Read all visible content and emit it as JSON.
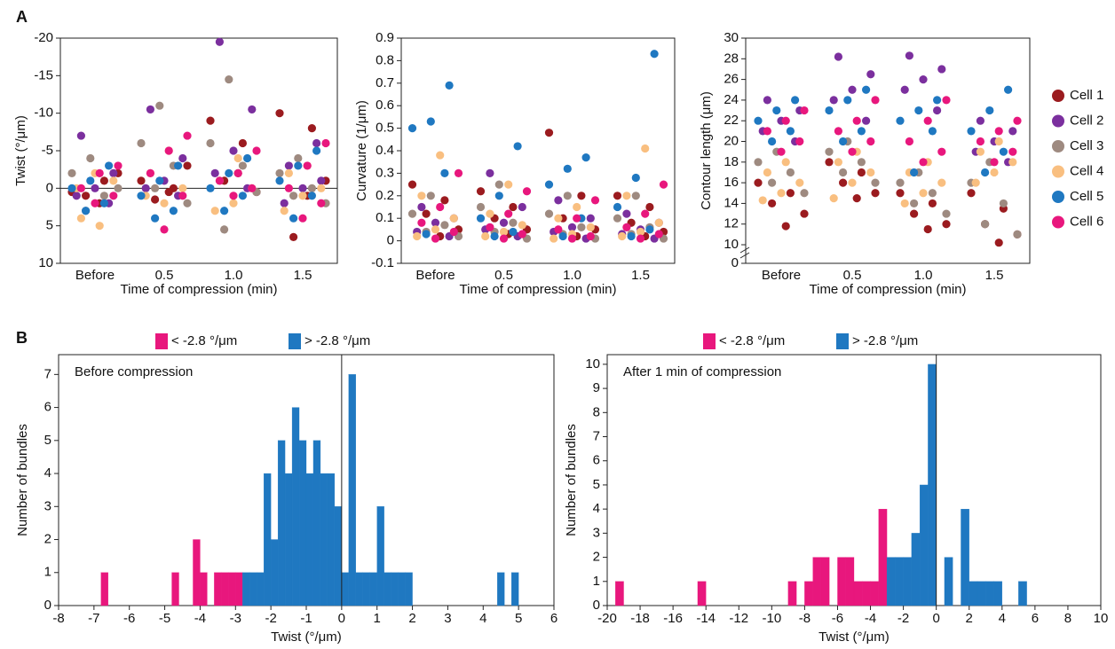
{
  "panel_labels": [
    "A",
    "B"
  ],
  "chart_data": [
    {
      "type": "beeswarm",
      "xlabel": "Time of compression (min)",
      "ylabel": "Twist (°/μm)",
      "categories": [
        "Before",
        "0.5",
        "1.0",
        "1.5"
      ],
      "ylim": [
        10,
        -20
      ],
      "yticks": [
        -20,
        -15,
        -10,
        -5,
        0,
        5,
        10
      ],
      "zero_line": true,
      "series": [
        {
          "color": "#9b1b1f",
          "values": [
            [
              0.5,
              -1,
              1,
              -2,
              2
            ],
            [
              -1,
              0,
              1.5,
              -3,
              0.5
            ],
            [
              -9,
              -6,
              -1,
              0.5,
              -2
            ],
            [
              -10,
              -8,
              6.5,
              -1,
              1
            ]
          ]
        },
        {
          "color": "#7b2f9e",
          "values": [
            [
              -7,
              -2,
              0,
              1,
              2
            ],
            [
              -10.5,
              -4,
              -1,
              0,
              1
            ],
            [
              -19.5,
              -10.5,
              -5,
              -2,
              0
            ],
            [
              -3,
              -1,
              0,
              2,
              -6
            ]
          ]
        },
        {
          "color": "#9e8a80",
          "values": [
            [
              -4,
              -2,
              1,
              3,
              0
            ],
            [
              -11,
              -6,
              -3,
              0,
              2
            ],
            [
              -14.5,
              -6,
              -3,
              5.5,
              0.5
            ],
            [
              -4,
              -2,
              0,
              1,
              2
            ]
          ]
        },
        {
          "color": "#f9bf80",
          "values": [
            [
              5,
              4,
              -1,
              -2,
              0
            ],
            [
              -5,
              -2,
              0,
              2,
              1
            ],
            [
              -4,
              -1,
              0,
              2,
              3
            ],
            [
              -3,
              -2,
              0,
              1,
              3
            ]
          ]
        },
        {
          "color": "#1f78c1",
          "values": [
            [
              -3,
              -1,
              0,
              2,
              3
            ],
            [
              -3,
              -1,
              1,
              3,
              4
            ],
            [
              -4,
              -2,
              0,
              1,
              3
            ],
            [
              -5,
              -3,
              -1,
              1,
              4
            ]
          ]
        },
        {
          "color": "#e8177d",
          "values": [
            [
              -3,
              -2,
              0,
              1,
              2
            ],
            [
              -7,
              -5,
              -2,
              1,
              5.5
            ],
            [
              -5,
              -2,
              -1,
              0,
              1
            ],
            [
              -6,
              -3,
              0,
              2,
              4
            ]
          ]
        }
      ]
    },
    {
      "type": "beeswarm",
      "xlabel": "Time of compression (min)",
      "ylabel": "Curvature (1/μm)",
      "categories": [
        "Before",
        "0.5",
        "1.0",
        "1.5"
      ],
      "ylim": [
        -0.1,
        0.9
      ],
      "yticks": [
        -0.1,
        0,
        0.1,
        0.2,
        0.3,
        0.4,
        0.5,
        0.6,
        0.7,
        0.8,
        0.9
      ],
      "series": [
        {
          "color": "#9b1b1f",
          "values": [
            [
              0.25,
              0.18,
              0.12,
              0.05,
              0.02
            ],
            [
              0.22,
              0.15,
              0.1,
              0.05,
              0.03
            ],
            [
              0.48,
              0.2,
              0.1,
              0.05,
              0.02
            ],
            [
              0.2,
              0.15,
              0.08,
              0.04,
              0.02
            ]
          ]
        },
        {
          "color": "#7b2f9e",
          "values": [
            [
              0.15,
              0.1,
              0.08,
              0.04,
              0.02
            ],
            [
              0.3,
              0.15,
              0.08,
              0.05,
              0.02
            ],
            [
              0.18,
              0.1,
              0.06,
              0.04,
              0.01
            ],
            [
              0.12,
              0.08,
              0.05,
              0.03,
              0.01
            ]
          ]
        },
        {
          "color": "#9e8a80",
          "values": [
            [
              0.2,
              0.12,
              0.07,
              0.04,
              0.02
            ],
            [
              0.25,
              0.15,
              0.08,
              0.04,
              0.01
            ],
            [
              0.2,
              0.12,
              0.06,
              0.03,
              0.01
            ],
            [
              0.2,
              0.1,
              0.06,
              0.03,
              0.01
            ]
          ]
        },
        {
          "color": "#f9bf80",
          "values": [
            [
              0.38,
              0.2,
              0.1,
              0.05,
              0.02
            ],
            [
              0.25,
              0.12,
              0.07,
              0.04,
              0.02
            ],
            [
              0.15,
              0.1,
              0.06,
              0.03,
              0.01
            ],
            [
              0.41,
              0.2,
              0.08,
              0.04,
              0.02
            ]
          ]
        },
        {
          "color": "#1f78c1",
          "values": [
            [
              0.69,
              0.53,
              0.5,
              0.3,
              0.03
            ],
            [
              0.42,
              0.2,
              0.1,
              0.04,
              0.02
            ],
            [
              0.37,
              0.32,
              0.25,
              0.1,
              0.02
            ],
            [
              0.83,
              0.28,
              0.15,
              0.05,
              0.02
            ]
          ]
        },
        {
          "color": "#e8177d",
          "values": [
            [
              0.3,
              0.15,
              0.08,
              0.04,
              0.01
            ],
            [
              0.22,
              0.12,
              0.06,
              0.03,
              0.01
            ],
            [
              0.18,
              0.1,
              0.05,
              0.02,
              0.01
            ],
            [
              0.25,
              0.12,
              0.06,
              0.03,
              0.01
            ]
          ]
        }
      ]
    },
    {
      "type": "beeswarm",
      "xlabel": "Time of compression (min)",
      "ylabel": "Contour length (μm)",
      "categories": [
        "Before",
        "0.5",
        "1.0",
        "1.5"
      ],
      "ylim": [
        8.2,
        30
      ],
      "yticks": [
        0,
        10,
        12,
        14,
        16,
        18,
        20,
        22,
        24,
        26,
        28,
        30
      ],
      "y_break": true,
      "series": [
        {
          "name": "Cell 1",
          "color": "#9b1b1f",
          "values": [
            [
              16,
              15,
              14,
              13,
              11.8
            ],
            [
              18,
              17,
              16,
              15,
              14.5
            ],
            [
              15,
              14,
              13,
              12,
              11.5
            ],
            [
              15,
              13.5,
              12,
              11,
              10.2
            ]
          ]
        },
        {
          "name": "Cell 2",
          "color": "#7b2f9e",
          "values": [
            [
              24,
              23,
              22,
              21,
              20
            ],
            [
              28.2,
              26.5,
              25,
              24,
              22
            ],
            [
              28.3,
              27,
              26,
              25,
              23
            ],
            [
              22,
              21,
              20,
              19,
              18
            ]
          ]
        },
        {
          "name": "Cell 3",
          "color": "#9e8a80",
          "values": [
            [
              19,
              18,
              17,
              16,
              15
            ],
            [
              20,
              19,
              18,
              17,
              16
            ],
            [
              17,
              16,
              15,
              14,
              13
            ],
            [
              18,
              16,
              14,
              12,
              11
            ]
          ]
        },
        {
          "name": "Cell 4",
          "color": "#f9bf80",
          "values": [
            [
              18,
              17,
              16,
              15,
              14.3
            ],
            [
              19,
              18,
              17,
              16,
              14.5
            ],
            [
              18,
              17,
              16,
              15,
              14
            ],
            [
              20,
              19,
              18,
              17,
              16
            ]
          ]
        },
        {
          "name": "Cell 5",
          "color": "#1f78c1",
          "values": [
            [
              24,
              23,
              22,
              21,
              20
            ],
            [
              25,
              24,
              23,
              21,
              20
            ],
            [
              24,
              23,
              22,
              21,
              17
            ],
            [
              25,
              23,
              21,
              19,
              17
            ]
          ]
        },
        {
          "name": "Cell 6",
          "color": "#e8177d",
          "values": [
            [
              23,
              22,
              21,
              20,
              19
            ],
            [
              24,
              22,
              21,
              20,
              19
            ],
            [
              24,
              22,
              20,
              19,
              18
            ],
            [
              22,
              21,
              20,
              19,
              18
            ]
          ]
        }
      ]
    },
    {
      "type": "histogram",
      "annotation": "Before compression",
      "xlabel": "Twist (°/μm)",
      "ylabel": "Number of bundles",
      "xlim": [
        -8,
        6
      ],
      "xticks": [
        -8,
        -7,
        -6,
        -5,
        -4,
        -3,
        -2,
        -1,
        0,
        1,
        2,
        3,
        4,
        5,
        6
      ],
      "ylim": [
        0,
        7.6
      ],
      "yticks": [
        0,
        1,
        2,
        3,
        4,
        5,
        6,
        7
      ],
      "zero_line": true,
      "series": [
        {
          "name": "< -2.8 °/μm",
          "color": "#e8177d",
          "bins": [
            -8,
            -7.8,
            -7.6,
            -7.4,
            -7.2,
            -7,
            -6.8,
            -6.6,
            -6.4,
            -6.2,
            -6,
            -5.8,
            -5.6,
            -5.4,
            -5.2,
            -5,
            -4.8,
            -4.6,
            -4.4,
            -4.2,
            -4,
            -3.8,
            -3.6,
            -3.4,
            -3.2,
            -3,
            -2.8
          ],
          "values": [
            0,
            0,
            0,
            0,
            0,
            0,
            1,
            0,
            0,
            0,
            0,
            0,
            0,
            0,
            0,
            0,
            1,
            0,
            0,
            2,
            1,
            0,
            1,
            1,
            1,
            1
          ]
        },
        {
          "name": "> -2.8 °/μm",
          "color": "#1f78c1",
          "bins": [
            -2.8,
            -2.6,
            -2.4,
            -2.2,
            -2,
            -1.8,
            -1.6,
            -1.4,
            -1.2,
            -1,
            -0.8,
            -0.6,
            -0.4,
            -0.2,
            0,
            0.2,
            0.4,
            0.6,
            0.8,
            1,
            1.2,
            1.4,
            1.6,
            1.8,
            2,
            2.2,
            2.4,
            2.6,
            2.8,
            3,
            3.2,
            3.4,
            3.6,
            3.8,
            4,
            4.2,
            4.4,
            4.6,
            4.8,
            5,
            5.2,
            5.4,
            5.6,
            5.8,
            6
          ],
          "values": [
            1,
            1,
            1,
            4,
            2,
            5,
            4,
            6,
            5,
            4,
            5,
            4,
            4,
            3,
            1,
            7,
            1,
            1,
            1,
            3,
            1,
            1,
            1,
            1,
            0,
            0,
            0,
            0,
            0,
            0,
            0,
            0,
            0,
            0,
            0,
            0,
            1,
            0,
            1,
            0,
            0,
            0,
            0,
            0
          ]
        }
      ]
    },
    {
      "type": "histogram",
      "annotation": "After 1 min of compression",
      "xlabel": "Twist (°/μm)",
      "ylabel": "Number of bundles",
      "xlim": [
        -20,
        10
      ],
      "xticks": [
        -20,
        -18,
        -16,
        -14,
        -12,
        -10,
        -8,
        -6,
        -4,
        -2,
        0,
        2,
        4,
        6,
        8,
        10
      ],
      "ylim": [
        0,
        10.4
      ],
      "yticks": [
        0,
        1,
        2,
        3,
        4,
        5,
        6,
        7,
        8,
        9,
        10
      ],
      "zero_line": true,
      "series": [
        {
          "name": "< -2.8 °/μm",
          "color": "#e8177d",
          "bins": [
            -20,
            -19.5,
            -19,
            -18.5,
            -18,
            -17.5,
            -17,
            -16.5,
            -16,
            -15.5,
            -15,
            -14.5,
            -14,
            -13.5,
            -13,
            -12.5,
            -12,
            -11.5,
            -11,
            -10.5,
            -10,
            -9.5,
            -9,
            -8.5,
            -8,
            -7.5,
            -7,
            -6.5,
            -6,
            -5.5,
            -5,
            -4.5,
            -4,
            -3.5,
            -3
          ],
          "values": [
            0,
            1,
            0,
            0,
            0,
            0,
            0,
            0,
            0,
            0,
            0,
            1,
            0,
            0,
            0,
            0,
            0,
            0,
            0,
            0,
            0,
            0,
            1,
            0,
            1,
            2,
            2,
            0,
            2,
            2,
            1,
            1,
            1,
            4
          ]
        },
        {
          "name": "> -2.8 °/μm",
          "color": "#1f78c1",
          "bins": [
            -3,
            -2.5,
            -2,
            -1.5,
            -1,
            -0.5,
            0,
            0.5,
            1,
            1.5,
            2,
            2.5,
            3,
            3.5,
            4,
            4.5,
            5,
            5.5,
            6
          ],
          "values": [
            2,
            2,
            2,
            3,
            5,
            10,
            0,
            2,
            0,
            4,
            1,
            1,
            1,
            1,
            0,
            0,
            1,
            0
          ]
        }
      ]
    }
  ]
}
